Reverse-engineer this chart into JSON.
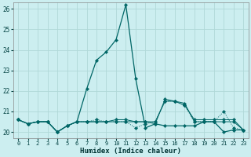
{
  "xlabel": "Humidex (Indice chaleur)",
  "background_color": "#cceef0",
  "grid_color": "#b0d8d8",
  "line_color": "#006666",
  "xlim": [
    -0.5,
    23.5
  ],
  "ylim": [
    19.7,
    26.3
  ],
  "yticks": [
    20,
    21,
    22,
    23,
    24,
    25,
    26
  ],
  "xticks": [
    0,
    1,
    2,
    3,
    4,
    5,
    6,
    7,
    8,
    9,
    10,
    11,
    12,
    13,
    14,
    15,
    16,
    17,
    18,
    19,
    20,
    21,
    22,
    23
  ],
  "series": [
    {
      "y": [
        20.6,
        20.4,
        20.5,
        20.5,
        20.0,
        20.3,
        20.5,
        22.1,
        23.5,
        23.9,
        24.5,
        26.2,
        22.6,
        20.2,
        20.4,
        20.3,
        20.3,
        20.3,
        20.3,
        20.5,
        20.5,
        20.0,
        20.1,
        20.1
      ],
      "linestyle": "-",
      "linewidth": 0.9
    },
    {
      "y": [
        20.6,
        20.4,
        20.5,
        20.5,
        20.0,
        20.3,
        20.5,
        20.5,
        20.5,
        20.5,
        20.6,
        20.6,
        20.5,
        20.5,
        20.5,
        21.5,
        21.5,
        21.3,
        20.6,
        20.6,
        20.6,
        20.6,
        20.6,
        20.1
      ],
      "linestyle": "-",
      "linewidth": 0.7
    },
    {
      "y": [
        20.6,
        20.4,
        20.5,
        20.5,
        20.0,
        20.3,
        20.5,
        20.5,
        20.5,
        20.5,
        20.5,
        20.5,
        20.5,
        20.5,
        20.4,
        21.6,
        21.5,
        21.4,
        20.5,
        20.5,
        20.5,
        20.5,
        20.5,
        20.1
      ],
      "linestyle": "-",
      "linewidth": 0.7
    },
    {
      "y": [
        20.6,
        20.4,
        20.5,
        20.5,
        20.0,
        20.3,
        20.5,
        20.5,
        20.6,
        20.5,
        20.5,
        20.5,
        20.2,
        20.4,
        20.5,
        21.5,
        21.5,
        21.3,
        20.5,
        20.5,
        20.5,
        21.0,
        20.2,
        20.1
      ],
      "linestyle": ":",
      "linewidth": 0.7
    }
  ]
}
